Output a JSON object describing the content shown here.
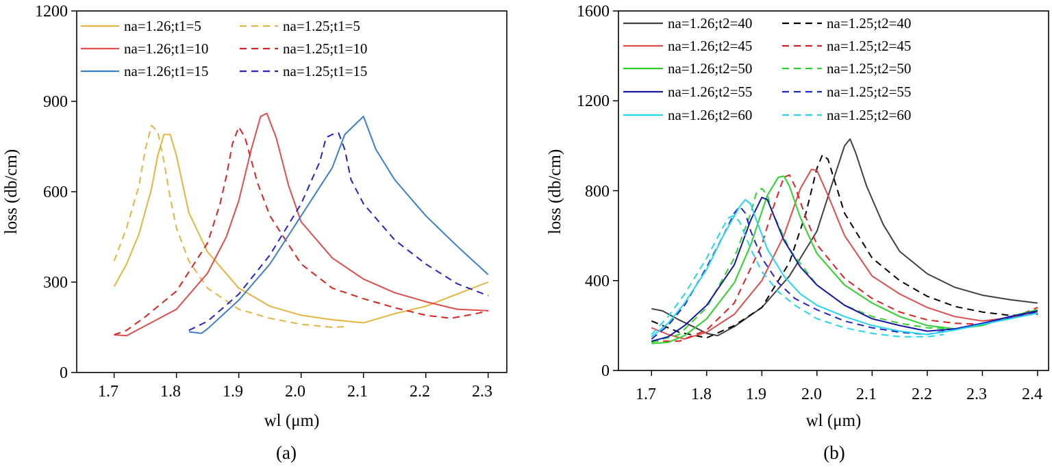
{
  "chart_data": [
    {
      "type": "line",
      "panel_label": "(a)",
      "xlabel": "wl (μm)",
      "ylabel": "loss (db/cm)",
      "xlim": [
        1.64,
        2.33
      ],
      "ylim": [
        0,
        1200
      ],
      "xticks": [
        1.7,
        1.8,
        1.9,
        2.0,
        2.1,
        2.2,
        2.3
      ],
      "xtick_labels": [
        "1.7",
        "1.8",
        "1.9",
        "2.0",
        "2.1",
        "2.2",
        "2.3"
      ],
      "yticks": [
        0,
        300,
        600,
        900,
        1200
      ],
      "ytick_labels": [
        "0",
        "300",
        "600",
        "900",
        "1200"
      ],
      "legend_columns": 2,
      "series": [
        {
          "name": "na=1.26;t1=5",
          "color": "#E5B33E",
          "style": "solid",
          "x": [
            1.7,
            1.72,
            1.74,
            1.76,
            1.77,
            1.78,
            1.79,
            1.8,
            1.82,
            1.85,
            1.9,
            1.95,
            2.0,
            2.05,
            2.1,
            2.15,
            2.2,
            2.25,
            2.3
          ],
          "y": [
            285,
            360,
            460,
            610,
            720,
            790,
            790,
            720,
            530,
            400,
            280,
            220,
            190,
            175,
            165,
            195,
            220,
            260,
            300
          ]
        },
        {
          "name": "na=1.25;t1=5",
          "color": "#E5B33E",
          "style": "dashed",
          "x": [
            1.7,
            1.72,
            1.74,
            1.75,
            1.76,
            1.77,
            1.78,
            1.79,
            1.8,
            1.82,
            1.85,
            1.9,
            1.95,
            2.0,
            2.05,
            2.07
          ],
          "y": [
            370,
            480,
            620,
            740,
            820,
            800,
            700,
            580,
            480,
            370,
            280,
            210,
            180,
            160,
            150,
            152
          ]
        },
        {
          "name": "na=1.26;t1=10",
          "color": "#E24B4B",
          "style": "solid",
          "x": [
            1.7,
            1.72,
            1.75,
            1.8,
            1.85,
            1.88,
            1.9,
            1.92,
            1.935,
            1.945,
            1.96,
            1.98,
            2.0,
            2.05,
            2.1,
            2.15,
            2.2,
            2.25,
            2.3
          ],
          "y": [
            125,
            122,
            155,
            210,
            330,
            450,
            570,
            740,
            850,
            860,
            780,
            620,
            500,
            380,
            310,
            265,
            235,
            210,
            205
          ]
        },
        {
          "name": "na=1.25;t1=10",
          "color": "#E02020",
          "style": "dashed",
          "x": [
            1.7,
            1.72,
            1.75,
            1.8,
            1.85,
            1.87,
            1.88,
            1.89,
            1.9,
            1.91,
            1.93,
            1.95,
            2.0,
            2.05,
            2.1,
            2.15,
            2.2,
            2.24,
            2.28,
            2.3
          ],
          "y": [
            125,
            140,
            185,
            270,
            430,
            560,
            650,
            760,
            815,
            780,
            630,
            520,
            360,
            280,
            245,
            215,
            190,
            180,
            195,
            205
          ]
        },
        {
          "name": "na=1.26;t1=15",
          "color": "#3A7FC8",
          "style": "solid",
          "x": [
            1.82,
            1.84,
            1.85,
            1.9,
            1.95,
            2.0,
            2.05,
            2.07,
            2.1,
            2.12,
            2.15,
            2.2,
            2.25,
            2.3
          ],
          "y": [
            135,
            130,
            145,
            240,
            360,
            520,
            680,
            790,
            850,
            740,
            640,
            520,
            420,
            325
          ]
        },
        {
          "name": "na=1.25;t1=15",
          "color": "#2222CC",
          "style": "dashed",
          "x": [
            1.82,
            1.85,
            1.9,
            1.95,
            2.0,
            2.03,
            2.04,
            2.05,
            2.06,
            2.07,
            2.08,
            2.1,
            2.15,
            2.2,
            2.25,
            2.3
          ],
          "y": [
            140,
            170,
            260,
            390,
            560,
            700,
            780,
            790,
            795,
            740,
            640,
            560,
            440,
            360,
            295,
            255
          ]
        }
      ]
    },
    {
      "type": "line",
      "panel_label": "(b)",
      "xlabel": "wl (μm)",
      "ylabel": "loss (db/cm)",
      "xlim": [
        1.64,
        2.42
      ],
      "ylim": [
        0,
        1600
      ],
      "xticks": [
        1.7,
        1.8,
        1.9,
        2.0,
        2.1,
        2.2,
        2.3,
        2.4
      ],
      "xtick_labels": [
        "1.7",
        "1.8",
        "1.9",
        "2.0",
        "2.1",
        "2.2",
        "2.3",
        "2.4"
      ],
      "yticks": [
        0,
        400,
        800,
        1200,
        1600
      ],
      "ytick_labels": [
        "0",
        "400",
        "800",
        "1200",
        "1600"
      ],
      "legend_columns": 2,
      "series": [
        {
          "name": "na=1.26;t2=40",
          "color": "#404040",
          "style": "solid",
          "x": [
            1.7,
            1.72,
            1.75,
            1.78,
            1.8,
            1.82,
            1.85,
            1.9,
            1.95,
            2.0,
            2.03,
            2.05,
            2.06,
            2.07,
            2.09,
            2.12,
            2.15,
            2.2,
            2.25,
            2.3,
            2.35,
            2.4
          ],
          "y": [
            275,
            265,
            225,
            190,
            165,
            155,
            195,
            280,
            420,
            620,
            850,
            1000,
            1030,
            970,
            820,
            650,
            530,
            430,
            370,
            335,
            315,
            300
          ]
        },
        {
          "name": "na=1.25;t2=40",
          "color": "#000000",
          "style": "dashed",
          "x": [
            1.7,
            1.75,
            1.8,
            1.85,
            1.9,
            1.95,
            1.98,
            2.0,
            2.01,
            2.02,
            2.03,
            2.05,
            2.1,
            2.15,
            2.2,
            2.25,
            2.3,
            2.35,
            2.4
          ],
          "y": [
            220,
            170,
            145,
            200,
            280,
            480,
            700,
            900,
            960,
            940,
            860,
            700,
            500,
            400,
            330,
            285,
            260,
            245,
            250
          ]
        },
        {
          "name": "na=1.26;t2=45",
          "color": "#E24B4B",
          "style": "solid",
          "x": [
            1.7,
            1.73,
            1.76,
            1.8,
            1.85,
            1.9,
            1.94,
            1.97,
            1.99,
            2.0,
            2.02,
            2.05,
            2.1,
            2.15,
            2.2,
            2.25,
            2.3,
            2.35,
            2.4
          ],
          "y": [
            190,
            160,
            140,
            170,
            250,
            400,
            600,
            810,
            895,
            890,
            780,
            600,
            420,
            340,
            280,
            240,
            220,
            235,
            260
          ]
        },
        {
          "name": "na=1.25;t2=45",
          "color": "#E02020",
          "style": "dashed",
          "x": [
            1.7,
            1.75,
            1.8,
            1.85,
            1.9,
            1.92,
            1.94,
            1.95,
            1.96,
            1.98,
            2.0,
            2.05,
            2.1,
            2.15,
            2.2,
            2.25,
            2.3,
            2.35,
            2.4
          ],
          "y": [
            130,
            130,
            180,
            300,
            560,
            720,
            860,
            870,
            820,
            680,
            560,
            410,
            320,
            260,
            225,
            210,
            205,
            230,
            280
          ]
        },
        {
          "name": "na=1.26;t2=50",
          "color": "#2AD42A",
          "style": "solid",
          "x": [
            1.7,
            1.73,
            1.76,
            1.8,
            1.85,
            1.88,
            1.91,
            1.93,
            1.94,
            1.95,
            1.97,
            2.0,
            2.05,
            2.1,
            2.15,
            2.2,
            2.25,
            2.3,
            2.35,
            2.4
          ],
          "y": [
            120,
            125,
            155,
            230,
            390,
            560,
            780,
            860,
            865,
            820,
            680,
            520,
            380,
            300,
            240,
            200,
            185,
            200,
            240,
            270
          ]
        },
        {
          "name": "na=1.25;t2=50",
          "color": "#2AD42A",
          "style": "dashed",
          "x": [
            1.7,
            1.75,
            1.8,
            1.85,
            1.88,
            1.89,
            1.9,
            1.91,
            1.92,
            1.95,
            2.0,
            2.05,
            2.1,
            2.15,
            2.2,
            2.25,
            2.3,
            2.35,
            2.4
          ],
          "y": [
            125,
            160,
            280,
            500,
            700,
            790,
            810,
            780,
            700,
            540,
            380,
            290,
            240,
            210,
            190,
            185,
            205,
            235,
            265
          ]
        },
        {
          "name": "na=1.26;t2=55",
          "color": "#1515A8",
          "style": "solid",
          "x": [
            1.7,
            1.73,
            1.76,
            1.8,
            1.85,
            1.88,
            1.9,
            1.91,
            1.92,
            1.94,
            1.97,
            2.0,
            2.05,
            2.1,
            2.15,
            2.2,
            2.25,
            2.3,
            2.35,
            2.4
          ],
          "y": [
            130,
            150,
            200,
            290,
            470,
            670,
            770,
            760,
            700,
            580,
            460,
            380,
            290,
            230,
            200,
            175,
            185,
            210,
            240,
            265
          ]
        },
        {
          "name": "na=1.25;t2=55",
          "color": "#2222CC",
          "style": "dashed",
          "x": [
            1.7,
            1.73,
            1.76,
            1.8,
            1.83,
            1.85,
            1.86,
            1.87,
            1.88,
            1.9,
            1.93,
            1.96,
            2.0,
            2.05,
            2.1,
            2.15,
            2.2,
            2.25,
            2.3,
            2.35,
            2.4
          ],
          "y": [
            140,
            200,
            290,
            460,
            600,
            700,
            730,
            700,
            620,
            500,
            390,
            320,
            270,
            220,
            190,
            170,
            160,
            185,
            210,
            235,
            260
          ]
        },
        {
          "name": "na=1.26;t2=60",
          "color": "#22D5F0",
          "style": "solid",
          "x": [
            1.7,
            1.73,
            1.76,
            1.8,
            1.83,
            1.86,
            1.87,
            1.88,
            1.89,
            1.91,
            1.94,
            1.97,
            2.0,
            2.05,
            2.1,
            2.15,
            2.2,
            2.25,
            2.3,
            2.35,
            2.4
          ],
          "y": [
            150,
            210,
            300,
            450,
            600,
            730,
            760,
            740,
            670,
            540,
            420,
            340,
            290,
            240,
            200,
            175,
            160,
            180,
            205,
            230,
            255
          ]
        },
        {
          "name": "na=1.25;t2=60",
          "color": "#22D5F0",
          "style": "dashed",
          "x": [
            1.7,
            1.73,
            1.76,
            1.8,
            1.83,
            1.84,
            1.85,
            1.86,
            1.88,
            1.9,
            1.93,
            1.96,
            2.0,
            2.05,
            2.1,
            2.15,
            2.2,
            2.23
          ],
          "y": [
            160,
            240,
            340,
            500,
            640,
            680,
            690,
            660,
            540,
            440,
            350,
            290,
            230,
            190,
            165,
            150,
            150,
            160
          ]
        }
      ]
    }
  ]
}
